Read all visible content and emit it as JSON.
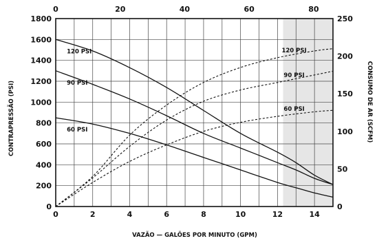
{
  "chart_data": {
    "type": "line",
    "title": "",
    "xlabel": "VAZÃO — GALÕES POR MINUTO (GPM)",
    "ylabel": "CONTRAPRESSÃO (PSI)",
    "y2label": "CONSUMO DE AR (SCFM)",
    "xlim": [
      0,
      15
    ],
    "ylim": [
      0,
      1800
    ],
    "x_top_lim": [
      0,
      86
    ],
    "y2lim": [
      0,
      250
    ],
    "x_ticks": [
      "0",
      "2",
      "4",
      "6",
      "8",
      "10",
      "12",
      "14"
    ],
    "x_top_ticks": [
      "0",
      "20",
      "40",
      "60",
      "80"
    ],
    "y_ticks": [
      "0",
      "200",
      "400",
      "600",
      "800",
      "1000",
      "1200",
      "1400",
      "1600",
      "1800"
    ],
    "y2_ticks": [
      "0",
      "50",
      "100",
      "150",
      "200",
      "250"
    ],
    "grid": true,
    "shaded_x_range": [
      12.3,
      15
    ],
    "shade_color": "#e6e6e6",
    "line_color": "#111111",
    "series": [
      {
        "name": "120 PSI",
        "kind": "pressure",
        "style": "solid",
        "axis": "left",
        "x": [
          0,
          2,
          4,
          6,
          8,
          10,
          12,
          13,
          14,
          15
        ],
        "y": [
          1600,
          1490,
          1330,
          1140,
          920,
          700,
          520,
          420,
          300,
          210
        ]
      },
      {
        "name": "90 PSI",
        "kind": "pressure",
        "style": "solid",
        "axis": "left",
        "x": [
          0,
          2,
          4,
          6,
          8,
          10,
          12,
          13,
          14,
          15
        ],
        "y": [
          1300,
          1170,
          1030,
          870,
          700,
          560,
          420,
          350,
          270,
          210
        ]
      },
      {
        "name": "60 PSI",
        "kind": "pressure",
        "style": "solid",
        "axis": "left",
        "x": [
          0,
          2,
          4,
          6,
          8,
          10,
          12,
          13,
          14,
          15
        ],
        "y": [
          850,
          790,
          700,
          590,
          470,
          350,
          230,
          180,
          130,
          90
        ]
      },
      {
        "name": "120 PSI",
        "kind": "air",
        "style": "dashed",
        "axis": "right",
        "x": [
          0,
          2,
          4,
          6,
          8,
          10,
          12,
          14,
          15
        ],
        "y": [
          0,
          40,
          95,
          135,
          165,
          185,
          198,
          207,
          210
        ]
      },
      {
        "name": "90 PSI",
        "kind": "air",
        "style": "dashed",
        "axis": "right",
        "x": [
          0,
          2,
          4,
          6,
          8,
          10,
          12,
          14,
          15
        ],
        "y": [
          0,
          38,
          80,
          115,
          140,
          155,
          165,
          175,
          180
        ]
      },
      {
        "name": "60 PSI",
        "kind": "air",
        "style": "dashed",
        "axis": "right",
        "x": [
          0,
          2,
          4,
          6,
          8,
          10,
          12,
          14,
          15
        ],
        "y": [
          0,
          32,
          60,
          82,
          100,
          112,
          120,
          126,
          128
        ]
      }
    ]
  }
}
